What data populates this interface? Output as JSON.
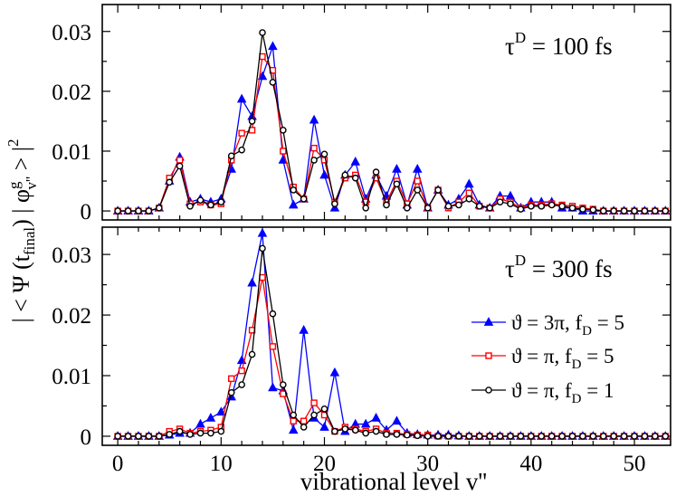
{
  "chart_data": [
    {
      "type": "line",
      "panel": "top",
      "annotation": {
        "symbol": "τ",
        "superscript": "D",
        "value": " = 100 fs"
      },
      "x": [
        0,
        1,
        2,
        3,
        4,
        5,
        6,
        7,
        8,
        9,
        10,
        11,
        12,
        13,
        14,
        15,
        16,
        17,
        18,
        19,
        20,
        21,
        22,
        23,
        24,
        25,
        26,
        27,
        28,
        29,
        30,
        31,
        32,
        33,
        34,
        35,
        36,
        37,
        38,
        39,
        40,
        41,
        42,
        43,
        44,
        45,
        46,
        47,
        48,
        49,
        50,
        51,
        52,
        53
      ],
      "xlim": [
        -1.5,
        53.5
      ],
      "ylim": [
        -0.0015,
        0.0345
      ],
      "yticks": [
        0,
        0.01,
        0.02,
        0.03
      ],
      "ytick_labels": [
        "0",
        "0.01",
        "0.02",
        "0.03"
      ],
      "series": [
        {
          "name": "ϑ = 3π, f_D = 5",
          "color": "#0000ff",
          "marker": "triangle",
          "values": [
            0,
            0,
            0,
            0,
            0.0005,
            0.005,
            0.009,
            0.0015,
            0.002,
            0.0015,
            0.002,
            0.007,
            0.0187,
            0.0158,
            0.0225,
            0.0275,
            0.0085,
            0.001,
            0.002,
            0.0152,
            0.006,
            0.0005,
            0.006,
            0.0082,
            0.002,
            0.006,
            0.0025,
            0.007,
            0.001,
            0.007,
            0.0005,
            0.0035,
            0.001,
            0.002,
            0.0045,
            0.001,
            0.0005,
            0.0025,
            0.0025,
            0.0005,
            0.0015,
            0.0015,
            0.0015,
            0.0005,
            0.0005,
            0,
            0,
            0,
            0,
            0,
            0,
            0,
            0,
            0
          ]
        },
        {
          "name": "ϑ = π, f_D = 5",
          "color": "#ff0000",
          "marker": "square",
          "values": [
            0,
            0,
            0,
            0,
            0.0005,
            0.0055,
            0.0085,
            0.0012,
            0.0015,
            0.001,
            0.0012,
            0.0085,
            0.013,
            0.0135,
            0.0258,
            0.0235,
            0.01,
            0.004,
            0.002,
            0.0105,
            0.0085,
            0.0015,
            0.0055,
            0.006,
            0.0015,
            0.0055,
            0.0015,
            0.005,
            0.0012,
            0.005,
            0.0005,
            0.0035,
            0.0005,
            0.0015,
            0.003,
            0.0008,
            0.0005,
            0.002,
            0.0015,
            0.0005,
            0.001,
            0.001,
            0.0012,
            0.001,
            0.0008,
            0.0005,
            0.0003,
            0,
            0,
            0,
            0,
            0,
            0,
            0
          ]
        },
        {
          "name": "ϑ = π, f_D = 1",
          "color": "#000000",
          "marker": "circle",
          "values": [
            0,
            0,
            0,
            0,
            0.0005,
            0.0048,
            0.0075,
            0.0008,
            0.0018,
            0.001,
            0.0015,
            0.0092,
            0.0102,
            0.015,
            0.0298,
            0.0215,
            0.0135,
            0.0035,
            0.002,
            0.0085,
            0.0095,
            0.0012,
            0.006,
            0.0055,
            0.0005,
            0.0065,
            0.001,
            0.0045,
            0.0005,
            0.0035,
            0.0005,
            0.0035,
            0.0008,
            0.001,
            0.002,
            0.0008,
            0.0005,
            0.0015,
            0.0012,
            0.0003,
            0.0008,
            0.0008,
            0.001,
            0.0008,
            0.0005,
            0.0003,
            0.0002,
            0,
            0,
            0,
            0,
            0,
            0,
            0
          ]
        }
      ]
    },
    {
      "type": "line",
      "panel": "bottom",
      "annotation": {
        "symbol": "τ",
        "superscript": "D",
        "value": " = 300 fs"
      },
      "x": [
        0,
        1,
        2,
        3,
        4,
        5,
        6,
        7,
        8,
        9,
        10,
        11,
        12,
        13,
        14,
        15,
        16,
        17,
        18,
        19,
        20,
        21,
        22,
        23,
        24,
        25,
        26,
        27,
        28,
        29,
        30,
        31,
        32,
        33,
        34,
        35,
        36,
        37,
        38,
        39,
        40,
        41,
        42,
        43,
        44,
        45,
        46,
        47,
        48,
        49,
        50,
        51,
        52,
        53
      ],
      "xlim": [
        -1.5,
        53.5
      ],
      "xticks": [
        0,
        10,
        20,
        30,
        40,
        50
      ],
      "xtick_labels": [
        "0",
        "10",
        "20",
        "30",
        "40",
        "50"
      ],
      "ylim": [
        -0.0015,
        0.0345
      ],
      "yticks": [
        0,
        0.01,
        0.02,
        0.03
      ],
      "ytick_labels": [
        "0",
        "0.01",
        "0.02",
        "0.03"
      ],
      "legend_position": "right",
      "series": [
        {
          "name": "ϑ = 3π, f_D = 5",
          "color": "#0000ff",
          "marker": "triangle",
          "values": [
            0,
            0,
            0,
            0,
            0,
            0.0002,
            0.0005,
            0.0005,
            0.002,
            0.003,
            0.004,
            0.0065,
            0.0125,
            0.0253,
            0.0335,
            0.008,
            0.0075,
            0.001,
            0.0175,
            0.003,
            0.0015,
            0.0105,
            0.0008,
            0.002,
            0.002,
            0.003,
            0.001,
            0.0025,
            0.0005,
            0.0003,
            0.0002,
            0.0002,
            0.0002,
            0.0001,
            0,
            0,
            0,
            0,
            0,
            0,
            0,
            0,
            0,
            0,
            0,
            0,
            0,
            0,
            0,
            0,
            0,
            0,
            0,
            0
          ]
        },
        {
          "name": "ϑ = π, f_D = 5",
          "color": "#ff0000",
          "marker": "square",
          "values": [
            0,
            0,
            0,
            0,
            0,
            0.0008,
            0.0012,
            0.0005,
            0.0008,
            0.001,
            0.0015,
            0.0095,
            0.0108,
            0.0175,
            0.0262,
            0.0148,
            0.007,
            0.0025,
            0.0025,
            0.0055,
            0.0035,
            0.0008,
            0.0015,
            0.0012,
            0.0008,
            0.0012,
            0.0005,
            0.0005,
            0.0003,
            0.0002,
            0.0002,
            0,
            0,
            0,
            0,
            0,
            0,
            0,
            0,
            0,
            0,
            0,
            0,
            0,
            0,
            0,
            0,
            0,
            0,
            0,
            0,
            0,
            0,
            0
          ]
        },
        {
          "name": "ϑ = π, f_D = 1",
          "color": "#000000",
          "marker": "circle",
          "values": [
            0,
            0,
            0,
            0,
            0,
            0.0003,
            0.0008,
            0.0003,
            0.0005,
            0.0005,
            0.0008,
            0.0072,
            0.0085,
            0.0135,
            0.031,
            0.0202,
            0.0085,
            0.0035,
            0.0015,
            0.0035,
            0.0045,
            0.0008,
            0.0012,
            0.001,
            0.0005,
            0.0008,
            0.0003,
            0.0003,
            0.0002,
            0.0001,
            0,
            0,
            0,
            0,
            0,
            0,
            0,
            0,
            0,
            0,
            0,
            0,
            0,
            0,
            0,
            0,
            0,
            0,
            0,
            0,
            0,
            0,
            0,
            0
          ]
        }
      ]
    }
  ],
  "axes": {
    "ylabel": "| < Ψ (t_final) | φ_v''^g > |^2",
    "xlabel": "vibrational level v''"
  },
  "ylabel_parts": {
    "a": "| < Ψ (t",
    "sub1": "final",
    "b": ") | φ",
    "sub2": "v''",
    "sup2": "g",
    "c": " > |",
    "sup3": "2"
  }
}
